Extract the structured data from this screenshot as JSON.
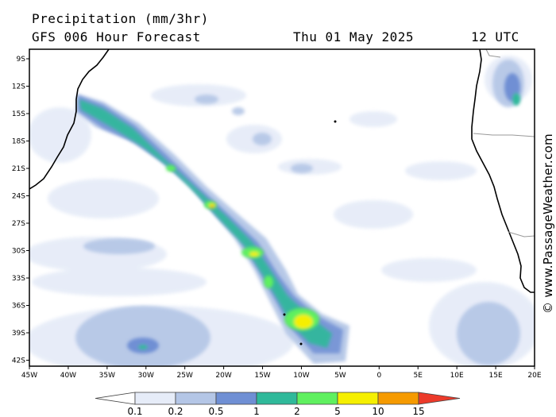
{
  "header": {
    "title": "Precipitation (mm/3hr)",
    "model": "GFS 006 Hour Forecast",
    "date": "Thu 01 May 2025",
    "time": "12 UTC"
  },
  "credit": "© www.PassageWeather.com",
  "map": {
    "lon_labels": [
      "45W",
      "40W",
      "35W",
      "30W",
      "25W",
      "20W",
      "15W",
      "10W",
      "5W",
      "0",
      "5E",
      "10E",
      "15E",
      "20E"
    ],
    "lat_labels": [
      "9S",
      "12S",
      "15S",
      "18S",
      "21S",
      "24S",
      "27S",
      "30S",
      "33S",
      "36S",
      "39S",
      "42S"
    ]
  },
  "legend": {
    "title": "mm/3hr",
    "labels": [
      "0.1",
      "0.2",
      "0.5",
      "1",
      "2",
      "5",
      "10",
      "15"
    ],
    "colors": [
      "#e6ecf8",
      "#b4c6e6",
      "#6f8fd4",
      "#2fb99a",
      "#5ff05f",
      "#f5ef00",
      "#f59a00",
      "#ec3a2a"
    ]
  },
  "colors": {
    "land_outline": "#000000",
    "border": "#999999",
    "frame": "#000000"
  }
}
